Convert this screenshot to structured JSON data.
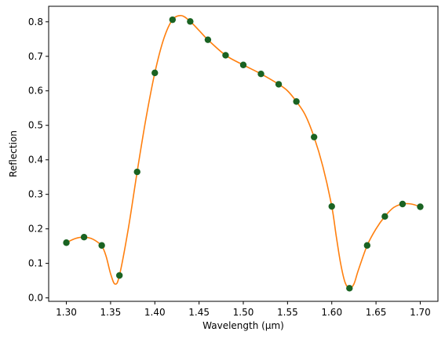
{
  "chart_data": {
    "type": "scatter",
    "title": "",
    "xlabel": "Wavelength (µm)",
    "ylabel": "Reflection",
    "xlim": [
      1.28,
      1.72
    ],
    "ylim": [
      -0.01,
      0.845
    ],
    "grid": false,
    "legend": "none",
    "xticks": [
      "1.30",
      "1.35",
      "1.40",
      "1.45",
      "1.50",
      "1.55",
      "1.60",
      "1.65",
      "1.70"
    ],
    "xtick_values": [
      1.3,
      1.35,
      1.4,
      1.45,
      1.5,
      1.55,
      1.6,
      1.65,
      1.7
    ],
    "yticks": [
      "0.0",
      "0.1",
      "0.2",
      "0.3",
      "0.4",
      "0.5",
      "0.6",
      "0.7",
      "0.8"
    ],
    "ytick_values": [
      0.0,
      0.1,
      0.2,
      0.3,
      0.4,
      0.5,
      0.6,
      0.7,
      0.8
    ],
    "series": [
      {
        "kind": "points",
        "color": "#1a6322",
        "x": [
          1.3,
          1.32,
          1.34,
          1.36,
          1.38,
          1.4,
          1.42,
          1.44,
          1.46,
          1.48,
          1.5,
          1.52,
          1.54,
          1.56,
          1.58,
          1.6,
          1.62,
          1.64,
          1.66,
          1.68,
          1.7
        ],
        "y": [
          0.16,
          0.176,
          0.152,
          0.065,
          0.365,
          0.652,
          0.806,
          0.801,
          0.748,
          0.703,
          0.675,
          0.649,
          0.619,
          0.569,
          0.466,
          0.265,
          0.028,
          0.152,
          0.236,
          0.272,
          0.264
        ]
      },
      {
        "kind": "curve",
        "color": "#ff7f0e",
        "x": [
          1.3,
          1.31,
          1.32,
          1.33,
          1.34,
          1.345,
          1.35,
          1.355,
          1.36,
          1.37,
          1.38,
          1.39,
          1.4,
          1.41,
          1.42,
          1.43,
          1.44,
          1.45,
          1.46,
          1.48,
          1.5,
          1.52,
          1.54,
          1.55,
          1.56,
          1.57,
          1.58,
          1.59,
          1.6,
          1.605,
          1.61,
          1.615,
          1.62,
          1.625,
          1.63,
          1.64,
          1.65,
          1.66,
          1.67,
          1.68,
          1.69,
          1.7
        ],
        "y": [
          0.16,
          0.172,
          0.176,
          0.17,
          0.15,
          0.12,
          0.07,
          0.04,
          0.065,
          0.2,
          0.365,
          0.52,
          0.652,
          0.75,
          0.806,
          0.818,
          0.801,
          0.775,
          0.748,
          0.703,
          0.675,
          0.649,
          0.619,
          0.6,
          0.569,
          0.53,
          0.466,
          0.38,
          0.265,
          0.18,
          0.1,
          0.045,
          0.028,
          0.04,
          0.08,
          0.152,
          0.2,
          0.236,
          0.262,
          0.272,
          0.272,
          0.264
        ]
      }
    ]
  }
}
